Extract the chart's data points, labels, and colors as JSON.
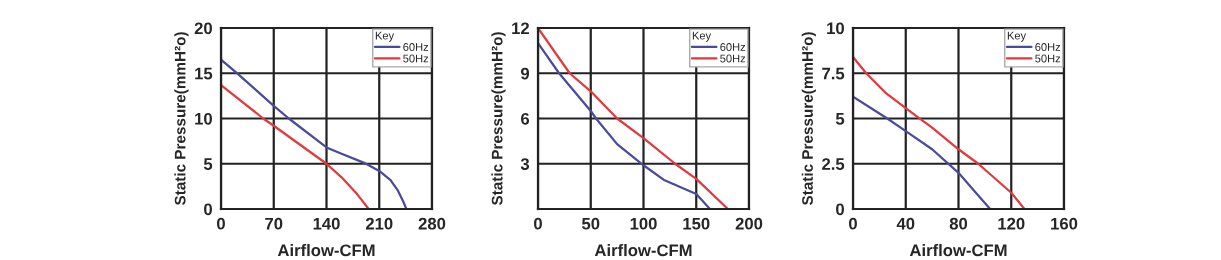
{
  "chart_data": [
    {
      "type": "line",
      "xlabel": "Airflow-CFM",
      "ylabel": "Static Pressure(mmH²o)",
      "legend_title": "Key",
      "legend": "top right",
      "grid": true,
      "marker": "none",
      "line_style": "solid",
      "xlim": [
        0,
        280
      ],
      "xticks": [
        0,
        70,
        140,
        210,
        280
      ],
      "ylim": [
        0,
        20
      ],
      "yticks": [
        0,
        5,
        10,
        15,
        20
      ],
      "series": [
        {
          "name": "60Hz",
          "color": "#4a4a9c",
          "x": [
            0,
            20,
            70,
            90,
            140,
            160,
            190,
            210,
            225,
            235,
            242,
            246
          ],
          "values": [
            16.5,
            15.1,
            11.4,
            10,
            6.8,
            6.1,
            5.1,
            4.2,
            3.2,
            2,
            0.8,
            0
          ]
        },
        {
          "name": "50Hz",
          "color": "#e0393e",
          "x": [
            0,
            56,
            70,
            140,
            160,
            180,
            196
          ],
          "values": [
            13.7,
            10,
            9.2,
            5,
            3.5,
            1.7,
            0
          ]
        }
      ]
    },
    {
      "type": "line",
      "xlabel": "Airflow-CFM",
      "ylabel": "Static Pressure(mmH²o)",
      "legend_title": "Key",
      "legend": "top right",
      "grid": true,
      "marker": "none",
      "line_style": "solid",
      "xlim": [
        0,
        200
      ],
      "xticks": [
        0,
        50,
        100,
        150,
        200
      ],
      "ylim": [
        0,
        12
      ],
      "yticks": [
        3,
        6,
        9,
        12
      ],
      "series": [
        {
          "name": "60Hz",
          "color": "#4a4a9c",
          "x": [
            0,
            20,
            50,
            55,
            75,
            100,
            120,
            150,
            163
          ],
          "values": [
            11,
            9,
            6.5,
            6,
            4.3,
            2.9,
            1.9,
            1,
            0
          ]
        },
        {
          "name": "50Hz",
          "color": "#e0393e",
          "x": [
            0,
            30,
            50,
            75,
            100,
            130,
            150,
            180
          ],
          "values": [
            12,
            9,
            7.8,
            6,
            4.7,
            3,
            2,
            0
          ]
        }
      ]
    },
    {
      "type": "line",
      "xlabel": "Airflow-CFM",
      "ylabel": "Static Pressure(mmH²o)",
      "legend_title": "Key",
      "legend": "top right",
      "grid": true,
      "marker": "none",
      "line_style": "solid",
      "xlim": [
        0,
        160
      ],
      "xticks": [
        0,
        40,
        80,
        120,
        160
      ],
      "ylim": [
        0,
        10
      ],
      "yticks": [
        0,
        2.5,
        5,
        7.5,
        10
      ],
      "series": [
        {
          "name": "60Hz",
          "color": "#4a4a9c",
          "x": [
            0,
            26,
            40,
            60,
            80,
            92,
            104
          ],
          "values": [
            6.2,
            5,
            4.3,
            3.3,
            2,
            1,
            0
          ]
        },
        {
          "name": "50Hz",
          "color": "#e0393e",
          "x": [
            0,
            10,
            25,
            45,
            60,
            80,
            95,
            120,
            130
          ],
          "values": [
            8.4,
            7.5,
            6.4,
            5.3,
            4.5,
            3.3,
            2.5,
            0.9,
            0
          ]
        }
      ]
    }
  ]
}
